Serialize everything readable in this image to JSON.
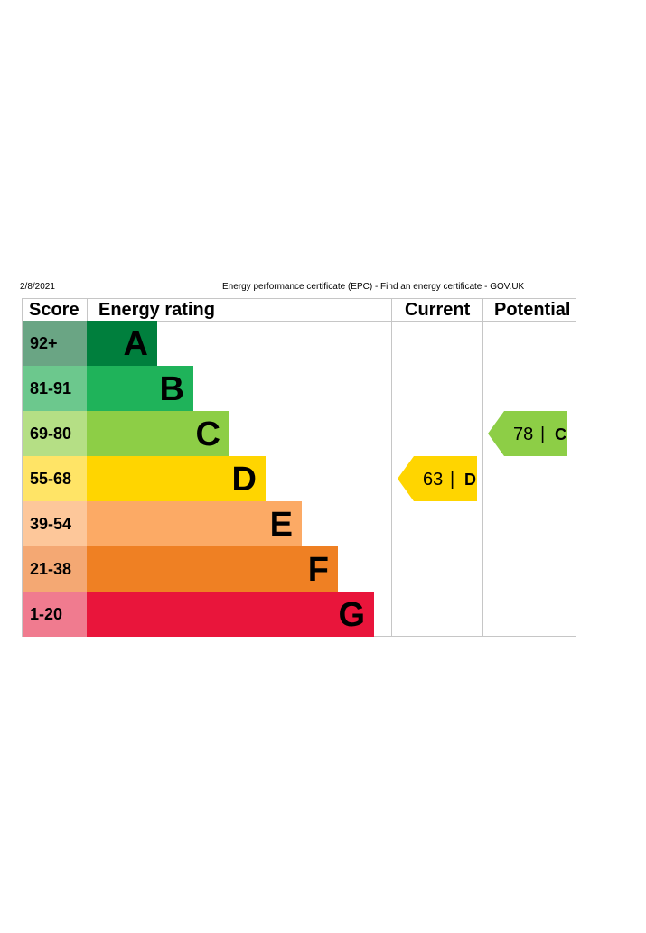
{
  "header": {
    "date": "2/8/2021",
    "title": "Energy performance certificate (EPC) - Find an energy certificate - GOV.UK"
  },
  "columns": {
    "score": "Score",
    "rating": "Energy rating",
    "current": "Current",
    "potential": "Potential"
  },
  "chart_data": {
    "type": "bar",
    "bands": [
      {
        "range": "92+",
        "letter": "A",
        "color": "#007f3d",
        "score_color": "#6aa584"
      },
      {
        "range": "81-91",
        "letter": "B",
        "color": "#1fb35a",
        "score_color": "#6cc88d"
      },
      {
        "range": "69-80",
        "letter": "C",
        "color": "#8dce46",
        "score_color": "#b5df85"
      },
      {
        "range": "55-68",
        "letter": "D",
        "color": "#ffd500",
        "score_color": "#ffe466"
      },
      {
        "range": "39-54",
        "letter": "E",
        "color": "#fcaa65",
        "score_color": "#fdc79a"
      },
      {
        "range": "21-38",
        "letter": "F",
        "color": "#ef8023",
        "score_color": "#f4a873"
      },
      {
        "range": "1-20",
        "letter": "G",
        "color": "#e9153b",
        "score_color": "#f07b8f"
      }
    ],
    "current": {
      "value": 63,
      "letter": "D",
      "band": 3,
      "color": "#ffd500"
    },
    "potential": {
      "value": 78,
      "letter": "C",
      "band": 2,
      "color": "#8dce46"
    }
  }
}
